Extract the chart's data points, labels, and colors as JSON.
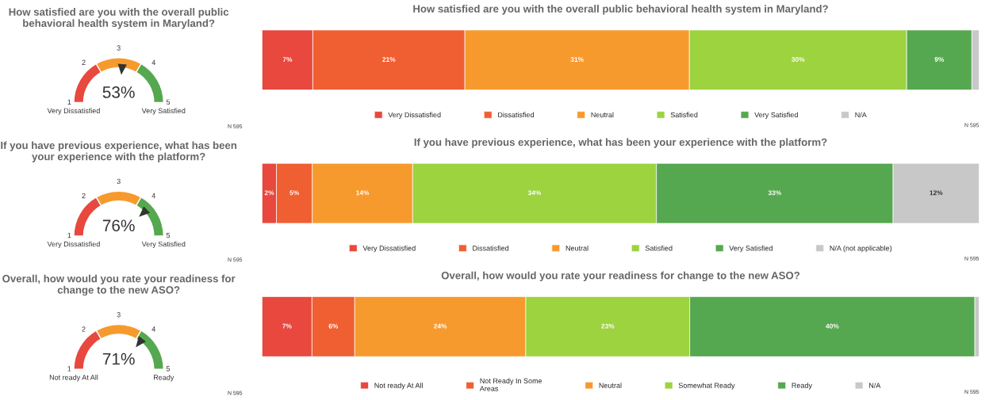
{
  "chart_data": [
    {
      "type": "other",
      "title": "How satisfied are you with the overall public behavioral health system in Maryland?",
      "values": [
        53
      ],
      "value_labels": [
        "53%"
      ],
      "needle": true,
      "annotations": [
        "1",
        "2",
        "3",
        "4",
        "5",
        "Very Dissatisfied",
        "Very Satisfied",
        "N 595"
      ]
    },
    {
      "type": "bar",
      "orientation": "horizontal",
      "stacked": true,
      "title": "How satisfied are you with the overall public behavioral health system in Maryland?",
      "categories": [
        null
      ],
      "legend": "bottom",
      "series": [
        {
          "name": "Very Dissatisfied",
          "color": "#e8483e",
          "values": [
            7
          ],
          "value_labels": [
            "7%"
          ]
        },
        {
          "name": "Dissatisfied",
          "color": "#f05f32",
          "values": [
            21
          ],
          "value_labels": [
            "21%"
          ]
        },
        {
          "name": "Neutral",
          "color": "#f79a2e",
          "values": [
            31
          ],
          "value_labels": [
            "31%"
          ]
        },
        {
          "name": "Satisfied",
          "color": "#9dd33f",
          "values": [
            30
          ],
          "value_labels": [
            "30%"
          ]
        },
        {
          "name": "Very Satisfied",
          "color": "#55a84f",
          "values": [
            9
          ],
          "value_labels": [
            "9%"
          ]
        },
        {
          "name": "N/A",
          "color": "#c8c8c8",
          "values": [
            1
          ],
          "value_labels": [
            null
          ]
        }
      ],
      "annotations": [
        "N 595"
      ]
    },
    {
      "type": "other",
      "title": "If you have previous experience, what has been your experience with the platform?",
      "values": [
        76
      ],
      "value_labels": [
        "76%"
      ],
      "needle": true,
      "annotations": [
        "1",
        "2",
        "3",
        "4",
        "5",
        "Very Dissatisfied",
        "Very Satisfied",
        "N 595"
      ]
    },
    {
      "type": "bar",
      "orientation": "horizontal",
      "stacked": true,
      "title": "If you have previous experience, what has been your experience with the platform?",
      "categories": [
        null
      ],
      "legend": "bottom",
      "series": [
        {
          "name": "Very Dissatisfied",
          "color": "#e8483e",
          "values": [
            2
          ],
          "value_labels": [
            "2%"
          ]
        },
        {
          "name": "Dissatisfied",
          "color": "#f05f32",
          "values": [
            5
          ],
          "value_labels": [
            "5%"
          ]
        },
        {
          "name": "Neutral",
          "color": "#f79a2e",
          "values": [
            14
          ],
          "value_labels": [
            "14%"
          ]
        },
        {
          "name": "Satisfied",
          "color": "#9dd33f",
          "values": [
            34
          ],
          "value_labels": [
            "34%"
          ]
        },
        {
          "name": "Very Satisfied",
          "color": "#55a84f",
          "values": [
            33
          ],
          "value_labels": [
            "33%"
          ]
        },
        {
          "name": "N/A (not applicable)",
          "color": "#c8c8c8",
          "values": [
            12
          ],
          "value_labels": [
            "12%"
          ]
        }
      ],
      "annotations": [
        "N 595"
      ]
    },
    {
      "type": "other",
      "title": "Overall, how would you rate your readiness for change to the new ASO?",
      "values": [
        71
      ],
      "value_labels": [
        "71%"
      ],
      "needle": true,
      "annotations": [
        "1",
        "2",
        "3",
        "4",
        "5",
        "Not ready At All",
        "Ready",
        "N 595"
      ]
    },
    {
      "type": "bar",
      "orientation": "horizontal",
      "stacked": true,
      "title": "Overall, how would you rate your readiness for change to the new ASO?",
      "categories": [
        null
      ],
      "legend": "bottom",
      "series": [
        {
          "name": "Not ready At All",
          "color": "#e8483e",
          "values": [
            7
          ],
          "value_labels": [
            "7%"
          ]
        },
        {
          "name": "Not Ready In Some\nAreas",
          "color": "#f05f32",
          "values": [
            6
          ],
          "value_labels": [
            "6%"
          ]
        },
        {
          "name": "Neutral",
          "color": "#f79a2e",
          "values": [
            24
          ],
          "value_labels": [
            "24%"
          ]
        },
        {
          "name": "Somewhat Ready",
          "color": "#9dd33f",
          "values": [
            23
          ],
          "value_labels": [
            "23%"
          ]
        },
        {
          "name": "Ready",
          "color": "#55a84f",
          "values": [
            40
          ],
          "value_labels": [
            "40%"
          ]
        },
        {
          "name": "N/A",
          "color": "#c8c8c8",
          "values": [
            0.6
          ],
          "value_labels": [
            null
          ]
        }
      ],
      "annotations": [
        "N 595"
      ]
    }
  ]
}
